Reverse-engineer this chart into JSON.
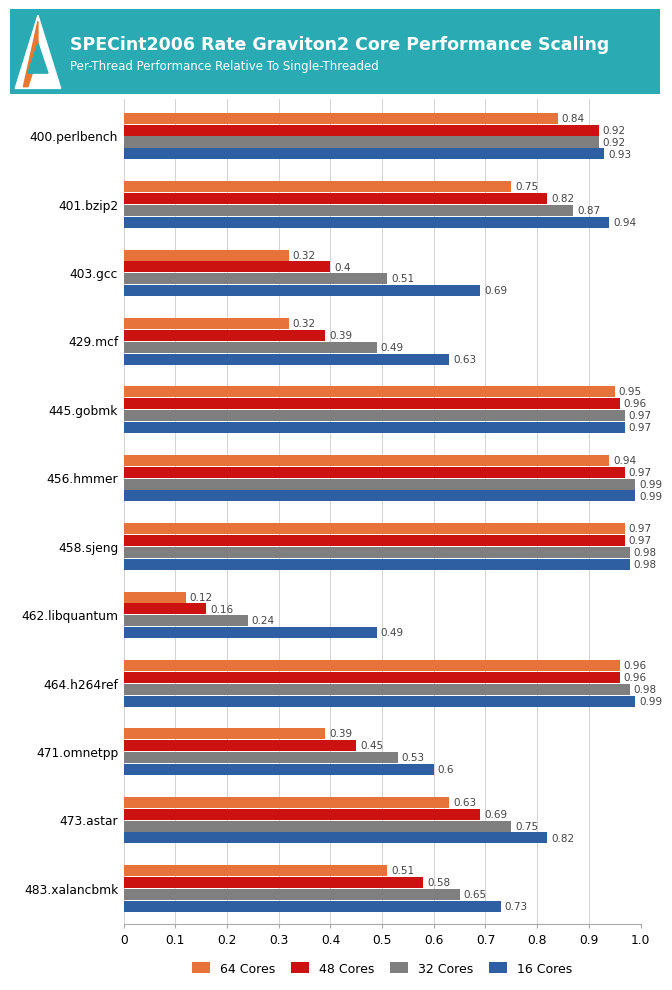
{
  "title": "SPECint2006 Rate Graviton2 Core Performance Scaling",
  "subtitle": "Per-Thread Performance Relative To Single-Threaded",
  "benchmarks": [
    "400.perlbench",
    "401.bzip2",
    "403.gcc",
    "429.mcf",
    "445.gobmk",
    "456.hmmer",
    "458.sjeng",
    "462.libquantum",
    "464.h264ref",
    "471.omnetpp",
    "473.astar",
    "483.xalancbmk"
  ],
  "series": {
    "64 Cores": [
      0.84,
      0.75,
      0.32,
      0.32,
      0.95,
      0.94,
      0.97,
      0.12,
      0.96,
      0.39,
      0.63,
      0.51
    ],
    "48 Cores": [
      0.92,
      0.82,
      0.4,
      0.39,
      0.96,
      0.97,
      0.97,
      0.16,
      0.96,
      0.45,
      0.69,
      0.58
    ],
    "32 Cores": [
      0.92,
      0.87,
      0.51,
      0.49,
      0.97,
      0.99,
      0.98,
      0.24,
      0.98,
      0.53,
      0.75,
      0.65
    ],
    "16 Cores": [
      0.93,
      0.94,
      0.69,
      0.63,
      0.97,
      0.99,
      0.98,
      0.49,
      0.99,
      0.6,
      0.82,
      0.73
    ]
  },
  "colors": {
    "64 Cores": "#E8733A",
    "48 Cores": "#CC1111",
    "32 Cores": "#7F7F7F",
    "16 Cores": "#2E5FA3"
  },
  "header_bg": "#2AABB3",
  "header_title_color": "#FFFFFF",
  "header_subtitle_color": "#FFFFFF",
  "legend_order": [
    "64 Cores",
    "48 Cores",
    "32 Cores",
    "16 Cores"
  ],
  "xticks": [
    0,
    0.1,
    0.2,
    0.3,
    0.4,
    0.5,
    0.6,
    0.7,
    0.8,
    0.9,
    1.0
  ]
}
